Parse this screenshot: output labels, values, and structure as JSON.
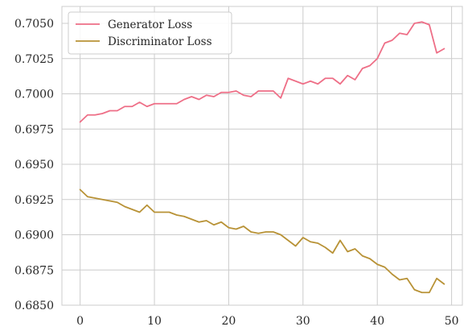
{
  "chart_data": {
    "type": "line",
    "title": "",
    "xlabel": "",
    "ylabel": "",
    "xlim": [
      -2.45,
      51.45
    ],
    "ylim": [
      0.685,
      0.7062
    ],
    "grid": true,
    "legend_position": "top-left",
    "x_ticks": [
      0,
      10,
      20,
      30,
      40,
      50
    ],
    "y_ticks": [
      0.685,
      0.6875,
      0.69,
      0.6925,
      0.695,
      0.6975,
      0.7,
      0.7025,
      0.705
    ],
    "x_tick_labels": [
      "0",
      "10",
      "20",
      "30",
      "40",
      "50"
    ],
    "y_tick_labels": [
      "0.6850",
      "0.6875",
      "0.6900",
      "0.6925",
      "0.6950",
      "0.6975",
      "0.7000",
      "0.7025",
      "0.7050"
    ],
    "x": [
      0,
      1,
      2,
      3,
      4,
      5,
      6,
      7,
      8,
      9,
      10,
      11,
      12,
      13,
      14,
      15,
      16,
      17,
      18,
      19,
      20,
      21,
      22,
      23,
      24,
      25,
      26,
      27,
      28,
      29,
      30,
      31,
      32,
      33,
      34,
      35,
      36,
      37,
      38,
      39,
      40,
      41,
      42,
      43,
      44,
      45,
      46,
      47,
      48,
      49
    ],
    "series": [
      {
        "name": "Generator Loss",
        "color": "#ee6f87",
        "values": [
          0.698,
          0.6985,
          0.6985,
          0.6986,
          0.6988,
          0.6988,
          0.6991,
          0.6991,
          0.6994,
          0.6991,
          0.6993,
          0.6993,
          0.6993,
          0.6993,
          0.6996,
          0.6998,
          0.6996,
          0.6999,
          0.6998,
          0.7001,
          0.7001,
          0.7002,
          0.6999,
          0.6998,
          0.7002,
          0.7002,
          0.7002,
          0.6997,
          0.7011,
          0.7009,
          0.7007,
          0.7009,
          0.7007,
          0.7011,
          0.7011,
          0.7007,
          0.7013,
          0.701,
          0.7018,
          0.702,
          0.7025,
          0.7036,
          0.7038,
          0.7043,
          0.7042,
          0.705,
          0.7051,
          0.7049,
          0.7029,
          0.7032
        ]
      },
      {
        "name": "Discriminator Loss",
        "color": "#b89236",
        "values": [
          0.6932,
          0.6927,
          0.6926,
          0.6925,
          0.6924,
          0.6923,
          0.692,
          0.6918,
          0.6916,
          0.6921,
          0.6916,
          0.6916,
          0.6916,
          0.6914,
          0.6913,
          0.6911,
          0.6909,
          0.691,
          0.6907,
          0.6909,
          0.6905,
          0.6904,
          0.6906,
          0.6902,
          0.6901,
          0.6902,
          0.6902,
          0.69,
          0.6896,
          0.6892,
          0.6898,
          0.6895,
          0.6894,
          0.6891,
          0.6887,
          0.6896,
          0.6888,
          0.689,
          0.6885,
          0.6883,
          0.6879,
          0.6877,
          0.6872,
          0.6868,
          0.6869,
          0.6861,
          0.6859,
          0.6859,
          0.6869,
          0.6865
        ]
      }
    ]
  }
}
